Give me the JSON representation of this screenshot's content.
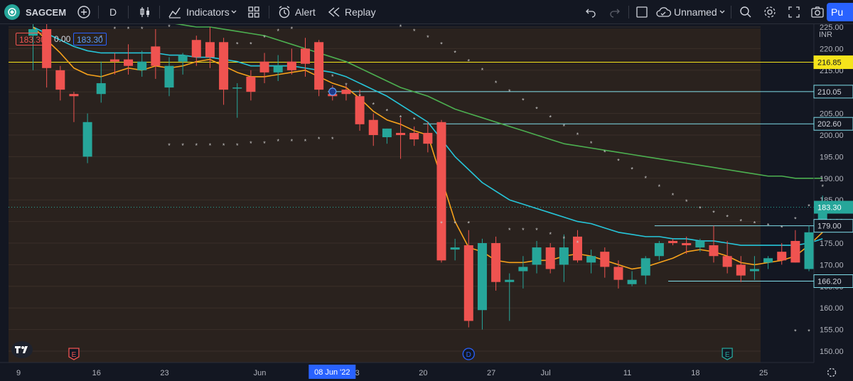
{
  "toolbar": {
    "symbol": "SAGCEM",
    "interval": "D",
    "indicators_label": "Indicators",
    "alert_label": "Alert",
    "replay_label": "Replay",
    "layout_name": "Unnamed",
    "publish_label": "Pu"
  },
  "legend": {
    "value_1": "183.30",
    "value_2": "0.00",
    "value_3": "183.30"
  },
  "colors": {
    "background": "#131722",
    "panel": "#2a221e",
    "up": "#26a69a",
    "down": "#ef5350",
    "ema_fast": "#f7a21b",
    "ema_mid": "#26c6da",
    "ema_slow": "#4caf50",
    "level_yellow": "#f5e41b",
    "level_teal": "#80deea",
    "accent": "#2962ff"
  },
  "price_axis": {
    "currency": "INR",
    "ticks": [
      "225.00",
      "220.00",
      "215.00",
      "210.00",
      "205.00",
      "200.00",
      "195.00",
      "190.00",
      "185.00",
      "180.00",
      "175.00",
      "170.00",
      "165.00",
      "160.00",
      "155.00",
      "150.00"
    ],
    "tick_values": [
      225,
      220,
      215,
      210,
      205,
      200,
      195,
      190,
      185,
      180,
      175,
      170,
      165,
      160,
      155,
      150
    ]
  },
  "time_axis": {
    "labels": [
      {
        "text": "9",
        "i": 0
      },
      {
        "text": "16",
        "i": 5
      },
      {
        "text": "23",
        "i": 10
      },
      {
        "text": "Jun",
        "i": 17
      },
      {
        "text": "13",
        "i": 24
      },
      {
        "text": "20",
        "i": 29
      },
      {
        "text": "27",
        "i": 34
      },
      {
        "text": "Jul",
        "i": 38
      },
      {
        "text": "11",
        "i": 44
      },
      {
        "text": "18",
        "i": 49
      },
      {
        "text": "25",
        "i": 54
      }
    ],
    "crosshair_label": "08 Jun '22",
    "crosshair_index": 22
  },
  "levels": [
    {
      "price": 216.85,
      "label": "216.85",
      "color": "#f5e41b",
      "from_index": 0,
      "style": "yellow"
    },
    {
      "price": 210.05,
      "label": "210.05",
      "color": "#80deea",
      "from_index": 22
    },
    {
      "price": 202.6,
      "label": "202.60",
      "color": "#80deea",
      "from_index": 29
    },
    {
      "price": 179.0,
      "label": "179.00",
      "color": "#80deea",
      "from_index": 46
    },
    {
      "price": 166.2,
      "label": "166.20",
      "color": "#80deea",
      "from_index": 47
    }
  ],
  "last_price": {
    "value": 183.3,
    "label": "183.30"
  },
  "markers": [
    {
      "text": "E",
      "index": 3,
      "color": "#ef5350"
    },
    {
      "text": "D",
      "index": 32,
      "color": "#2962ff"
    },
    {
      "text": "E",
      "index": 51,
      "color": "#26a69a"
    }
  ],
  "chart_data": {
    "type": "candlestick",
    "symbol": "SAGCEM",
    "interval": "D",
    "y_range": [
      148,
      230
    ],
    "candles": [
      {
        "o": 223.0,
        "h": 228.0,
        "l": 215.0,
        "c": 224.5
      },
      {
        "o": 224.5,
        "h": 226.0,
        "l": 211.0,
        "c": 215.5
      },
      {
        "o": 215.0,
        "h": 216.0,
        "l": 208.0,
        "c": 210.5
      },
      {
        "o": 209.5,
        "h": 210.0,
        "l": 203.0,
        "c": 209.0
      },
      {
        "o": 195.0,
        "h": 205.0,
        "l": 193.5,
        "c": 203.0
      },
      {
        "o": 209.5,
        "h": 217.0,
        "l": 207.5,
        "c": 212.0
      },
      {
        "o": 217.5,
        "h": 219.0,
        "l": 214.0,
        "c": 217.0
      },
      {
        "o": 217.5,
        "h": 221.0,
        "l": 214.0,
        "c": 216.0
      },
      {
        "o": 215.0,
        "h": 219.5,
        "l": 213.5,
        "c": 217.0
      },
      {
        "o": 220.5,
        "h": 224.5,
        "l": 213.0,
        "c": 216.0
      },
      {
        "o": 211.0,
        "h": 218.0,
        "l": 209.0,
        "c": 216.0
      },
      {
        "o": 217.0,
        "h": 219.0,
        "l": 214.0,
        "c": 218.5
      },
      {
        "o": 222.0,
        "h": 223.0,
        "l": 216.0,
        "c": 218.0
      },
      {
        "o": 221.5,
        "h": 225.0,
        "l": 215.5,
        "c": 218.0
      },
      {
        "o": 221.5,
        "h": 222.5,
        "l": 207.0,
        "c": 210.5
      },
      {
        "o": 211.0,
        "h": 212.0,
        "l": 204.0,
        "c": 211.0
      },
      {
        "o": 213.5,
        "h": 215.0,
        "l": 208.0,
        "c": 210.0
      },
      {
        "o": 217.0,
        "h": 219.0,
        "l": 212.0,
        "c": 214.5
      },
      {
        "o": 214.5,
        "h": 218.5,
        "l": 212.5,
        "c": 216.0
      },
      {
        "o": 217.0,
        "h": 220.0,
        "l": 214.0,
        "c": 215.0
      },
      {
        "o": 220.0,
        "h": 222.5,
        "l": 213.5,
        "c": 216.5
      },
      {
        "o": 221.5,
        "h": 222.0,
        "l": 209.0,
        "c": 210.5
      },
      {
        "o": 209.5,
        "h": 211.5,
        "l": 208.0,
        "c": 209.0
      },
      {
        "o": 210.5,
        "h": 211.5,
        "l": 208.0,
        "c": 209.5
      },
      {
        "o": 209.0,
        "h": 210.5,
        "l": 201.0,
        "c": 202.5
      },
      {
        "o": 203.5,
        "h": 205.0,
        "l": 197.5,
        "c": 200.0
      },
      {
        "o": 199.5,
        "h": 201.5,
        "l": 198.0,
        "c": 201.5
      },
      {
        "o": 200.5,
        "h": 204.0,
        "l": 194.5,
        "c": 200.0
      },
      {
        "o": 200.5,
        "h": 202.0,
        "l": 197.5,
        "c": 199.0
      },
      {
        "o": 200.5,
        "h": 203.0,
        "l": 196.0,
        "c": 198.0
      },
      {
        "o": 203.0,
        "h": 203.5,
        "l": 170.5,
        "c": 171.0
      },
      {
        "o": 173.5,
        "h": 176.0,
        "l": 171.0,
        "c": 174.0
      },
      {
        "o": 174.5,
        "h": 178.0,
        "l": 155.5,
        "c": 157.0
      },
      {
        "o": 159.5,
        "h": 176.0,
        "l": 155.0,
        "c": 175.0
      },
      {
        "o": 175.0,
        "h": 176.5,
        "l": 164.0,
        "c": 166.0
      },
      {
        "o": 166.0,
        "h": 168.0,
        "l": 157.0,
        "c": 166.5
      },
      {
        "o": 168.5,
        "h": 172.0,
        "l": 164.5,
        "c": 169.5
      },
      {
        "o": 170.0,
        "h": 175.5,
        "l": 168.0,
        "c": 174.0
      },
      {
        "o": 174.0,
        "h": 175.0,
        "l": 168.0,
        "c": 169.0
      },
      {
        "o": 170.0,
        "h": 177.0,
        "l": 166.0,
        "c": 174.0
      },
      {
        "o": 176.5,
        "h": 178.0,
        "l": 170.5,
        "c": 171.0
      },
      {
        "o": 170.5,
        "h": 173.5,
        "l": 168.0,
        "c": 172.0
      },
      {
        "o": 173.0,
        "h": 174.0,
        "l": 167.0,
        "c": 169.5
      },
      {
        "o": 169.5,
        "h": 171.0,
        "l": 164.5,
        "c": 166.5
      },
      {
        "o": 165.5,
        "h": 168.5,
        "l": 165.0,
        "c": 166.5
      },
      {
        "o": 167.5,
        "h": 172.0,
        "l": 165.5,
        "c": 171.5
      },
      {
        "o": 172.0,
        "h": 175.5,
        "l": 171.0,
        "c": 175.0
      },
      {
        "o": 175.5,
        "h": 176.0,
        "l": 174.5,
        "c": 175.0
      },
      {
        "o": 175.0,
        "h": 176.5,
        "l": 172.5,
        "c": 174.5
      },
      {
        "o": 174.0,
        "h": 176.0,
        "l": 173.0,
        "c": 175.5
      },
      {
        "o": 174.5,
        "h": 179.0,
        "l": 170.5,
        "c": 172.0
      },
      {
        "o": 172.0,
        "h": 175.5,
        "l": 168.0,
        "c": 169.5
      },
      {
        "o": 170.0,
        "h": 172.0,
        "l": 166.0,
        "c": 167.5
      },
      {
        "o": 168.5,
        "h": 172.0,
        "l": 166.5,
        "c": 169.0
      },
      {
        "o": 170.5,
        "h": 172.0,
        "l": 169.0,
        "c": 171.5
      },
      {
        "o": 173.0,
        "h": 175.0,
        "l": 170.0,
        "c": 171.0
      },
      {
        "o": 175.5,
        "h": 178.0,
        "l": 170.5,
        "c": 170.5
      },
      {
        "o": 169.0,
        "h": 179.0,
        "l": 168.5,
        "c": 177.5
      },
      {
        "o": 178.0,
        "h": 186.0,
        "l": 178.0,
        "c": 183.3
      }
    ],
    "ema_fast": [
      225,
      222,
      219,
      215.5,
      214,
      213.5,
      214.5,
      215.5,
      215,
      216,
      215.5,
      216,
      217,
      217.5,
      216,
      214.5,
      213.5,
      213.5,
      214,
      214.5,
      215,
      213.5,
      212,
      211,
      208.5,
      205.5,
      203.5,
      202.5,
      201,
      200,
      190,
      180,
      174,
      173,
      171,
      170.5,
      170.5,
      171,
      171,
      172,
      172.5,
      172,
      171,
      170,
      169,
      169.5,
      170.5,
      171.5,
      173,
      173.5,
      173,
      172,
      170.5,
      170,
      170.5,
      171,
      172,
      174.5,
      177.5
    ],
    "ema_mid": [
      225,
      223.5,
      222,
      220.5,
      219.5,
      219,
      219,
      219,
      219,
      219,
      218.5,
      218.5,
      218,
      218,
      217.5,
      217,
      216,
      216,
      216,
      216,
      215.5,
      215,
      214.5,
      213.5,
      212,
      210.5,
      209,
      207,
      205,
      203,
      199,
      195,
      192,
      189,
      187,
      185,
      184,
      183,
      182,
      181,
      180,
      179.5,
      178.5,
      177.5,
      177,
      176.5,
      176.5,
      176,
      176,
      175.5,
      175.5,
      175,
      174.5,
      174.5,
      174.5,
      174.5,
      174.5,
      175,
      176
    ],
    "ema_slow": [
      230,
      230,
      230,
      229,
      229,
      228,
      228,
      227,
      227,
      226.5,
      226,
      225.5,
      225,
      225,
      224.5,
      224,
      223.5,
      223,
      222,
      221,
      220,
      219,
      218,
      217,
      215.5,
      214,
      212.5,
      211,
      210,
      209,
      207.5,
      206,
      205,
      204,
      203,
      202,
      201,
      200,
      199,
      198,
      197.5,
      197,
      196.5,
      196,
      195.5,
      195,
      194.5,
      194,
      193.5,
      193,
      192.5,
      192,
      191.5,
      191,
      190.5,
      190.5,
      190,
      190,
      190
    ],
    "psar": [
      {
        "i": 5,
        "v": 222.5
      },
      {
        "i": 6,
        "v": 224.5
      },
      {
        "i": 7,
        "v": 224.5
      },
      {
        "i": 8,
        "v": 224.5
      },
      {
        "i": 9,
        "v": 226
      },
      {
        "i": 10,
        "v": 225
      },
      {
        "i": 11,
        "v": 226.5
      },
      {
        "i": 12,
        "v": 229
      },
      {
        "i": 13,
        "v": 228
      },
      {
        "i": 14,
        "v": 226
      },
      {
        "i": 15,
        "v": 221
      },
      {
        "i": 16,
        "v": 221
      },
      {
        "i": 17,
        "v": 222.5
      },
      {
        "i": 18,
        "v": 224
      },
      {
        "i": 19,
        "v": 224.5
      },
      {
        "i": 20,
        "v": 226
      },
      {
        "i": 10,
        "v": 197.5
      },
      {
        "i": 11,
        "v": 197.5
      },
      {
        "i": 12,
        "v": 197.5
      },
      {
        "i": 13,
        "v": 197.5
      },
      {
        "i": 14,
        "v": 197.5
      },
      {
        "i": 15,
        "v": 197.5
      },
      {
        "i": 16,
        "v": 198
      },
      {
        "i": 17,
        "v": 198
      },
      {
        "i": 18,
        "v": 198.5
      },
      {
        "i": 19,
        "v": 198.5
      },
      {
        "i": 20,
        "v": 198.5
      },
      {
        "i": 21,
        "v": 199
      },
      {
        "i": 22,
        "v": 199
      },
      {
        "i": 22,
        "v": 213.5
      },
      {
        "i": 23,
        "v": 211.5
      },
      {
        "i": 24,
        "v": 209
      },
      {
        "i": 25,
        "v": 207
      },
      {
        "i": 26,
        "v": 205.5
      },
      {
        "i": 27,
        "v": 204
      },
      {
        "i": 28,
        "v": 203.5
      },
      {
        "i": 24,
        "v": 227
      },
      {
        "i": 25,
        "v": 226.5
      },
      {
        "i": 26,
        "v": 226
      },
      {
        "i": 27,
        "v": 225
      },
      {
        "i": 28,
        "v": 224
      },
      {
        "i": 29,
        "v": 222.5
      },
      {
        "i": 30,
        "v": 221
      },
      {
        "i": 31,
        "v": 219
      },
      {
        "i": 32,
        "v": 217
      },
      {
        "i": 33,
        "v": 215
      },
      {
        "i": 34,
        "v": 212
      },
      {
        "i": 35,
        "v": 210
      },
      {
        "i": 36,
        "v": 208
      },
      {
        "i": 37,
        "v": 206
      },
      {
        "i": 38,
        "v": 204
      },
      {
        "i": 39,
        "v": 202
      },
      {
        "i": 40,
        "v": 200
      },
      {
        "i": 41,
        "v": 198
      },
      {
        "i": 42,
        "v": 196
      },
      {
        "i": 43,
        "v": 194
      },
      {
        "i": 44,
        "v": 192
      },
      {
        "i": 45,
        "v": 190
      },
      {
        "i": 46,
        "v": 188
      },
      {
        "i": 47,
        "v": 186
      },
      {
        "i": 48,
        "v": 184.5
      },
      {
        "i": 49,
        "v": 183
      },
      {
        "i": 50,
        "v": 182
      },
      {
        "i": 51,
        "v": 181
      },
      {
        "i": 52,
        "v": 180
      },
      {
        "i": 53,
        "v": 179.5
      },
      {
        "i": 54,
        "v": 179
      },
      {
        "i": 55,
        "v": 178.5
      },
      {
        "i": 30,
        "v": 179.5
      },
      {
        "i": 31,
        "v": 179.5
      },
      {
        "i": 32,
        "v": 179.5
      },
      {
        "i": 35,
        "v": 178
      },
      {
        "i": 36,
        "v": 178
      },
      {
        "i": 37,
        "v": 178
      },
      {
        "i": 38,
        "v": 177
      },
      {
        "i": 39,
        "v": 176
      },
      {
        "i": 40,
        "v": 175
      },
      {
        "i": 56,
        "v": 180.5
      },
      {
        "i": 57,
        "v": 183.5
      },
      {
        "i": 58,
        "v": 188
      },
      {
        "i": 56,
        "v": 154.5
      },
      {
        "i": 57,
        "v": 154.5
      }
    ]
  }
}
